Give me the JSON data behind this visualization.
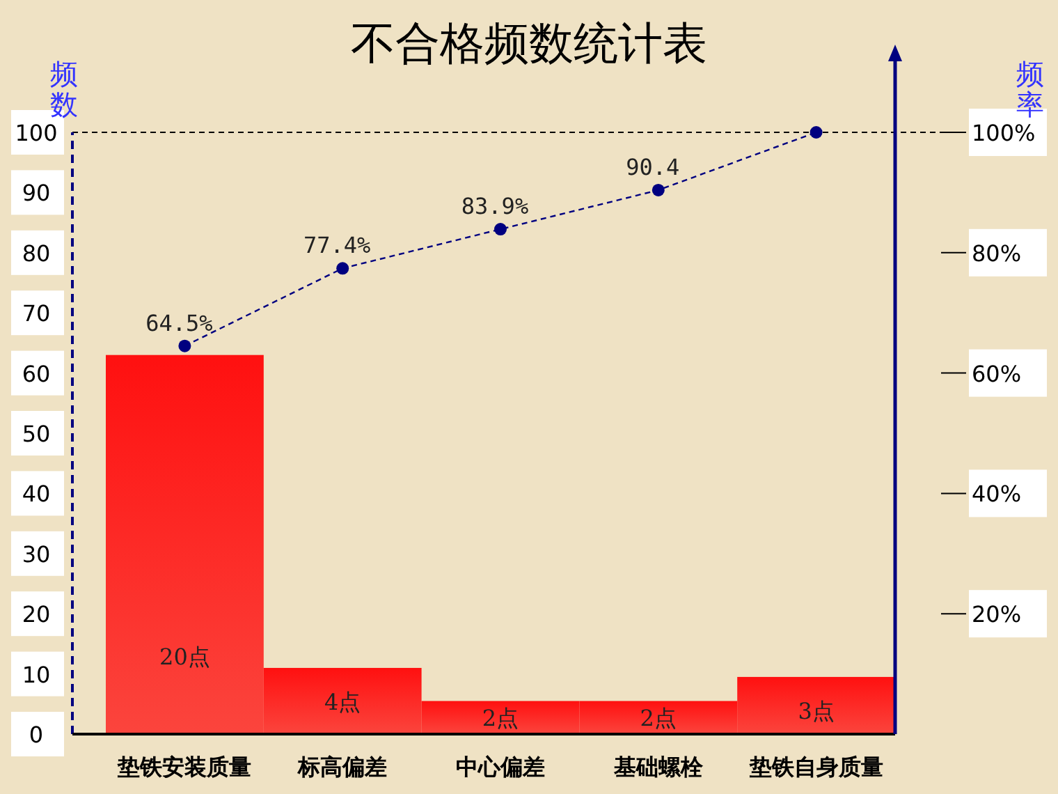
{
  "chart_data": {
    "type": "bar",
    "title": "不合格频数统计表",
    "ylabel": "频数",
    "y2label": "频率",
    "categories": [
      "垫铁安装质量",
      "标高偏差",
      "中心偏差",
      "基础螺栓",
      "垫铁自身质量"
    ],
    "ylim": [
      0,
      100
    ],
    "yticks": [
      0,
      10,
      20,
      30,
      40,
      50,
      60,
      70,
      80,
      90,
      100
    ],
    "y2lim": [
      0,
      100
    ],
    "y2ticks": [
      {
        "value": 20,
        "label": "20%"
      },
      {
        "value": 40,
        "label": "40%"
      },
      {
        "value": 60,
        "label": "60%"
      },
      {
        "value": 80,
        "label": "80%"
      },
      {
        "value": 100,
        "label": "100%"
      }
    ],
    "series": [
      {
        "color": "#ff1010",
        "values": [
          63,
          11,
          5.5,
          5.5,
          9.5
        ]
      },
      {
        "type": "line",
        "color": "#000080",
        "values": [
          64.5,
          77.4,
          83.9,
          90.4,
          100
        ],
        "value_labels": [
          "64.5%",
          "77.4%",
          "83.9%",
          "90.4",
          null
        ],
        "marker": "circle",
        "line_style": "dashed"
      }
    ],
    "annotations": [
      "20点",
      "4点",
      "2点",
      "2点",
      "3点"
    ],
    "ref_lines": [
      {
        "axis": "y",
        "value": 100,
        "color": "#000000",
        "line_style": "dashed"
      }
    ]
  }
}
